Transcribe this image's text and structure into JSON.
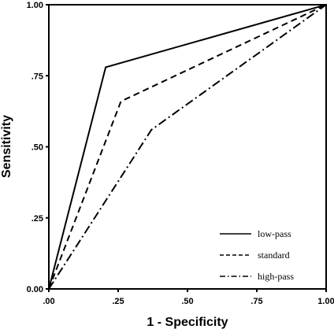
{
  "chart_data": {
    "type": "line",
    "title": "",
    "xlabel": "1 - Specificity",
    "ylabel": "Sensitivity",
    "xlim": [
      0,
      1
    ],
    "ylim": [
      0,
      1
    ],
    "xticks": [
      ".00",
      ".25",
      ".50",
      ".75",
      "1.00"
    ],
    "yticks": [
      "0.00",
      ".25",
      ".50",
      ".75",
      "1.00"
    ],
    "grid": false,
    "legend_position": "bottom-right",
    "series": [
      {
        "name": "low-pass",
        "dash": "solid",
        "x": [
          0,
          0.205,
          1
        ],
        "y": [
          0,
          0.78,
          1
        ]
      },
      {
        "name": "standard",
        "dash": "dashed",
        "x": [
          0,
          0.26,
          1
        ],
        "y": [
          0,
          0.66,
          1
        ]
      },
      {
        "name": "high-pass",
        "dash": "dashdot",
        "x": [
          0,
          0.37,
          1
        ],
        "y": [
          0,
          0.56,
          1
        ]
      }
    ]
  }
}
